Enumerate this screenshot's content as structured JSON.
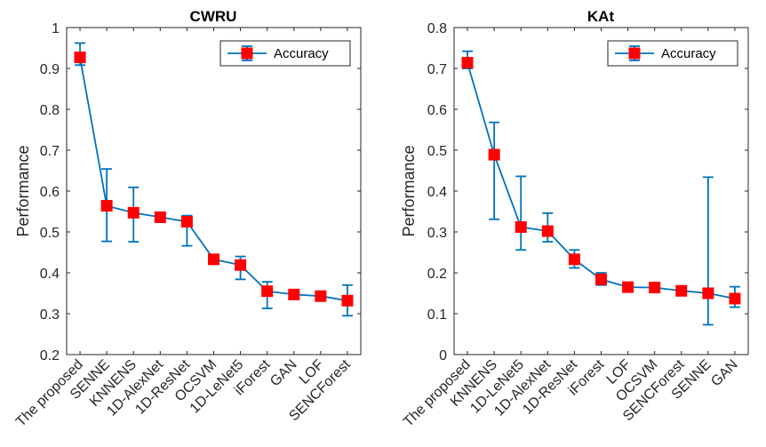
{
  "chart_data": [
    {
      "type": "line",
      "title": "CWRU",
      "xlabel": "",
      "ylabel": "Performance",
      "ylim": [
        0.2,
        1
      ],
      "yticks": [
        "0.2",
        "0.3",
        "0.4",
        "0.5",
        "0.6",
        "0.7",
        "0.8",
        "0.9",
        "1"
      ],
      "grid": false,
      "legend_position": "top-right",
      "categories": [
        "The proposed",
        "SENNE",
        "KNNENS",
        "1D-AlexNet",
        "1D-ResNet",
        "OCSVM",
        "1D-LeNet5",
        "iForest",
        "GAN",
        "LOF",
        "SENCForest"
      ],
      "series": [
        {
          "name": "Accuracy",
          "values": [
            0.927,
            0.564,
            0.547,
            0.536,
            0.525,
            0.433,
            0.419,
            0.355,
            0.347,
            0.343,
            0.332
          ],
          "err_low": [
            0.908,
            0.477,
            0.476,
            0.531,
            0.466,
            0.428,
            0.384,
            0.313,
            0.341,
            0.338,
            0.295
          ],
          "err_high": [
            0.962,
            0.654,
            0.609,
            0.542,
            0.54,
            0.438,
            0.44,
            0.378,
            0.353,
            0.348,
            0.37
          ]
        }
      ],
      "colors": {
        "line": "#0072BD",
        "marker": "#FF0000"
      }
    },
    {
      "type": "line",
      "title": "KAt",
      "xlabel": "",
      "ylabel": "Performance",
      "ylim": [
        0,
        0.8
      ],
      "yticks": [
        "0",
        "0.1",
        "0.2",
        "0.3",
        "0.4",
        "0.5",
        "0.6",
        "0.7",
        "0.8"
      ],
      "grid": false,
      "legend_position": "top-right",
      "categories": [
        "The proposed",
        "KNNENS",
        "1D-LeNet5",
        "1D-AlexNet",
        "1D-ResNet",
        "iForest",
        "LOF",
        "OCSVM",
        "SENCForest",
        "SENNE",
        "GAN"
      ],
      "series": [
        {
          "name": "Accuracy",
          "values": [
            0.714,
            0.489,
            0.312,
            0.302,
            0.233,
            0.184,
            0.165,
            0.164,
            0.156,
            0.15,
            0.137
          ],
          "err_low": [
            0.7,
            0.331,
            0.256,
            0.276,
            0.212,
            0.17,
            0.16,
            0.159,
            0.15,
            0.073,
            0.116
          ],
          "err_high": [
            0.742,
            0.568,
            0.436,
            0.346,
            0.256,
            0.2,
            0.171,
            0.17,
            0.163,
            0.434,
            0.166
          ]
        }
      ],
      "colors": {
        "line": "#0072BD",
        "marker": "#FF0000"
      }
    }
  ]
}
